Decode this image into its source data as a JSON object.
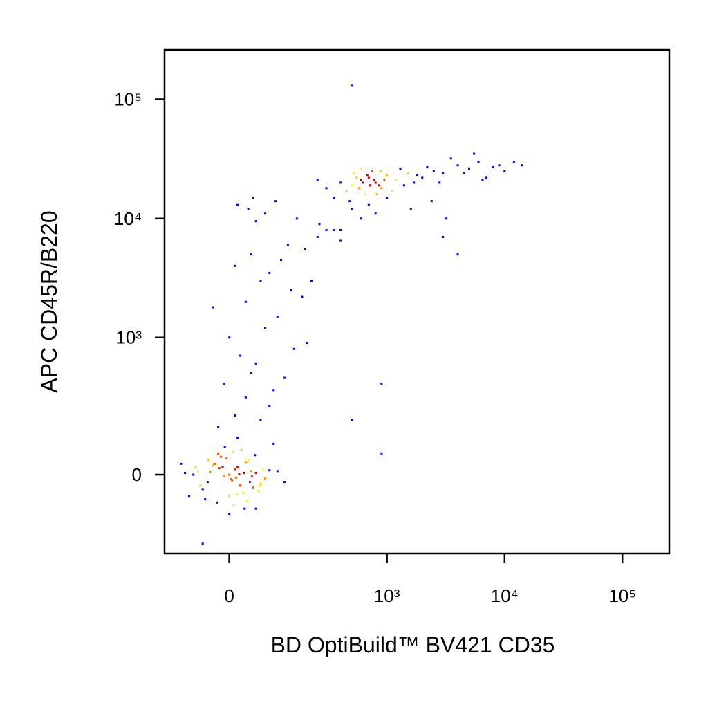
{
  "chart_data": {
    "type": "scatter",
    "xlabel": "BD OptiBuild™ BV421 CD35",
    "ylabel": "APC CD45R/B220",
    "xscale": "biexponential",
    "yscale": "biexponential",
    "xlim": [
      -150,
      250000
    ],
    "ylim": [
      -310,
      260000
    ],
    "xticks": [
      0,
      {
        "value": 1000,
        "label": "10³"
      },
      {
        "value": 10000,
        "label": "10⁴"
      },
      {
        "value": 100000,
        "label": "10⁵"
      }
    ],
    "yticks": [
      0,
      {
        "value": 1000,
        "label": "10³"
      },
      {
        "value": 10000,
        "label": "10⁴"
      },
      {
        "value": 100000,
        "label": "10⁵"
      }
    ],
    "color": "#0000ff",
    "x": [
      -60,
      -40,
      -25,
      -10,
      0,
      10,
      20,
      35,
      50,
      70,
      -50,
      -30,
      -15,
      5,
      15,
      25,
      40,
      60,
      -70,
      -20,
      0,
      30,
      45,
      -35,
      12,
      -5,
      55,
      80,
      -90,
      -45,
      22,
      8,
      -12,
      38,
      65,
      -28,
      3,
      18,
      -55,
      48,
      28,
      -8,
      14,
      -18,
      33,
      -38,
      6,
      42,
      -65,
      58,
      100,
      120,
      -100,
      90,
      -80,
      0,
      15,
      -22,
      27,
      50,
      -20,
      10,
      30,
      60,
      -10,
      40,
      80,
      20,
      0,
      50,
      90,
      120,
      150,
      70,
      30,
      100,
      200,
      60,
      140,
      -30,
      10,
      40,
      80,
      130,
      180,
      250,
      300,
      50,
      110,
      160,
      220,
      35,
      70,
      190,
      260,
      400,
      15,
      95,
      45,
      350,
      300,
      400,
      500,
      600,
      700,
      800,
      900,
      1000,
      1200,
      1500,
      350,
      450,
      550,
      650,
      750,
      850,
      950,
      1100,
      1300,
      1700,
      2000,
      2500,
      3000,
      4000,
      5000,
      6000,
      7000,
      8000,
      10000,
      12000,
      250,
      480,
      520,
      580,
      620,
      680,
      720,
      780,
      820,
      880,
      1400,
      1800,
      2200,
      2800,
      3500,
      4500,
      5500,
      6500,
      9000,
      14000,
      500,
      600,
      700,
      800,
      400,
      1000,
      1600,
      2400,
      3200,
      600,
      900,
      900,
      500,
      3000,
      4000,
      -50,
      500
    ],
    "values": [
      10,
      -20,
      30,
      -5,
      0,
      15,
      -30,
      40,
      5,
      -10,
      -40,
      25,
      50,
      -15,
      20,
      -50,
      10,
      -25,
      0,
      60,
      -60,
      35,
      -35,
      8,
      -8,
      45,
      -45,
      12,
      5,
      -70,
      70,
      -90,
      22,
      -20,
      15,
      30,
      -12,
      2,
      -30,
      55,
      -100,
      80,
      -55,
      18,
      -75,
      40,
      65,
      -5,
      20,
      -30,
      10,
      -20,
      30,
      90,
      -60,
      -120,
      110,
      -80,
      5,
      -100,
      150,
      200,
      300,
      180,
      400,
      500,
      250,
      700,
      1000,
      600,
      350,
      450,
      800,
      1200,
      2000,
      1500,
      900,
      3000,
      2500,
      1800,
      4000,
      5000,
      3500,
      6000,
      2200,
      7000,
      8000,
      9500,
      4500,
      10000,
      3000,
      12000,
      11000,
      5500,
      9000,
      6500,
      13000,
      14000,
      15000,
      8000,
      18000,
      20000,
      19000,
      21000,
      22000,
      20000,
      18000,
      23000,
      21000,
      24000,
      15000,
      17000,
      22000,
      16000,
      25000,
      19000,
      21000,
      17000,
      26000,
      20000,
      22000,
      25000,
      24000,
      28000,
      26000,
      30000,
      22000,
      27000,
      25000,
      30000,
      21000,
      14000,
      24000,
      18000,
      20000,
      23000,
      19000,
      21000,
      16000,
      25000,
      19000,
      23000,
      27000,
      20000,
      32000,
      24000,
      35000,
      21000,
      28000,
      28000,
      12000,
      10000,
      13000,
      11000,
      8000,
      15000,
      12000,
      14000,
      10000,
      26000,
      400,
      60,
      180,
      7000,
      5000,
      -250,
      130000
    ]
  }
}
